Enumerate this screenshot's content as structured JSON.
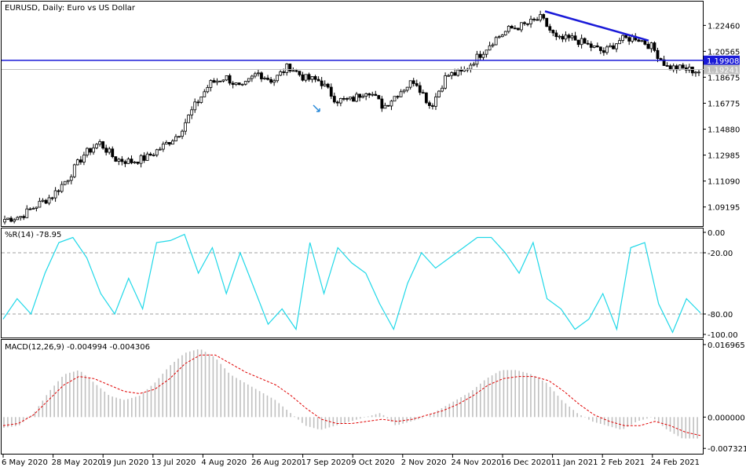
{
  "chart_title": "EURUSD, Daily:  Euro vs US Dollar",
  "colors": {
    "background": "#ffffff",
    "frame": "#000000",
    "candle_up": "#ffffff",
    "candle_down": "#000000",
    "hline": "#1a1ad8",
    "trendline": "#1a1ad8",
    "williams": "#20d8e8",
    "macd_hist": "#c0c0c0",
    "macd_signal": "#e00000",
    "grid_dashed": "#a0a0a0",
    "price_current": "#c0c0c0"
  },
  "chart_data": [
    {
      "type": "candlestick",
      "title": "EURUSD, Daily:  Euro vs US Dollar",
      "ylim": [
        1.078,
        1.242
      ],
      "y_ticks": [
        "1.22460",
        "1.20565",
        "1.18675",
        "1.16775",
        "1.14880",
        "1.12985",
        "1.11090",
        "1.09195"
      ],
      "y_tick_values": [
        1.2246,
        1.20565,
        1.18675,
        1.16775,
        1.1488,
        1.12985,
        1.1109,
        1.09195
      ],
      "horizontal_line": {
        "value": 1.19908,
        "label": "1.19908"
      },
      "current_price": {
        "value": 1.19241,
        "label": "1.19241"
      },
      "trendline": {
        "from": {
          "date": "17 Dec 2020",
          "price": 1.2349
        },
        "to": {
          "date": "1 Feb 2021",
          "price": 1.2135
        }
      },
      "annotations": [
        {
          "type": "arrow",
          "date": "24 Sep 2020",
          "price": 1.164
        }
      ],
      "x_ticks": [
        "6 May 2020",
        "28 May 2020",
        "19 Jun 2020",
        "13 Jul 2020",
        "4 Aug 2020",
        "26 Aug 2020",
        "17 Sep 2020",
        "9 Oct 2020",
        "2 Nov 2020",
        "24 Nov 2020",
        "16 Dec 2020",
        "11 Jan 2021",
        "2 Feb 2021",
        "24 Feb 2021"
      ],
      "close_anchors": [
        1.083,
        1.085,
        1.093,
        1.1,
        1.113,
        1.13,
        1.139,
        1.127,
        1.125,
        1.128,
        1.136,
        1.145,
        1.165,
        1.182,
        1.187,
        1.178,
        1.19,
        1.184,
        1.195,
        1.186,
        1.184,
        1.17,
        1.17,
        1.178,
        1.165,
        1.176,
        1.185,
        1.165,
        1.188,
        1.19,
        1.202,
        1.214,
        1.222,
        1.225,
        1.23,
        1.214,
        1.215,
        1.21,
        1.205,
        1.214,
        1.216,
        1.209,
        1.194,
        1.193,
        1.191
      ]
    },
    {
      "type": "line",
      "title": "%R(14) -78.95",
      "ylim": [
        -100,
        0
      ],
      "y_ticks": [
        "0.00",
        "-20.00",
        "-80.00",
        "-100.00"
      ],
      "y_tick_values": [
        0,
        -20,
        -80,
        -100
      ],
      "levels": [
        -20,
        -80
      ],
      "values": [
        -85,
        -65,
        -80,
        -40,
        -10,
        -5,
        -25,
        -60,
        -80,
        -45,
        -75,
        -10,
        -8,
        -2,
        -40,
        -15,
        -60,
        -20,
        -55,
        -90,
        -75,
        -95,
        -10,
        -60,
        -15,
        -30,
        -40,
        -70,
        -95,
        -50,
        -20,
        -35,
        -25,
        -15,
        -5,
        -5,
        -20,
        -40,
        -10,
        -65,
        -75,
        -95,
        -85,
        -60,
        -95,
        -15,
        -10,
        -70,
        -98,
        -65,
        -78.95
      ]
    },
    {
      "type": "bar+line",
      "title": "MACD(12,26,9) -0.004994 -0.004306",
      "ylim": [
        -0.0082,
        0.0175
      ],
      "y_ticks": [
        "0.016965",
        "0.000000",
        "-0.007321"
      ],
      "y_tick_values": [
        0.016965,
        0,
        -0.007321
      ],
      "hist_values": [
        -0.0025,
        -0.002,
        0.001,
        0.006,
        0.01,
        0.011,
        0.008,
        0.005,
        0.004,
        0.005,
        0.008,
        0.012,
        0.015,
        0.016,
        0.014,
        0.01,
        0.008,
        0.006,
        0.004,
        0.001,
        -0.002,
        -0.003,
        -0.002,
        -0.001,
        0.0,
        0.001,
        -0.002,
        -0.001,
        0.0,
        0.002,
        0.004,
        0.006,
        0.009,
        0.011,
        0.011,
        0.01,
        0.008,
        0.004,
        0.001,
        -0.001,
        -0.002,
        -0.003,
        -0.001,
        0.0,
        -0.003,
        -0.005,
        -0.005
      ],
      "signal_values": [
        -0.002,
        -0.0015,
        0.0005,
        0.004,
        0.0075,
        0.0095,
        0.009,
        0.0075,
        0.006,
        0.0055,
        0.0065,
        0.009,
        0.0125,
        0.0145,
        0.0145,
        0.0125,
        0.0105,
        0.009,
        0.0075,
        0.005,
        0.002,
        -0.0005,
        -0.0015,
        -0.0015,
        -0.001,
        -0.0005,
        -0.001,
        -0.0005,
        0.0005,
        0.0015,
        0.003,
        0.005,
        0.0075,
        0.009,
        0.0095,
        0.0095,
        0.0085,
        0.006,
        0.003,
        0.0005,
        -0.001,
        -0.002,
        -0.002,
        -0.001,
        -0.002,
        -0.0035,
        -0.0043
      ]
    }
  ]
}
